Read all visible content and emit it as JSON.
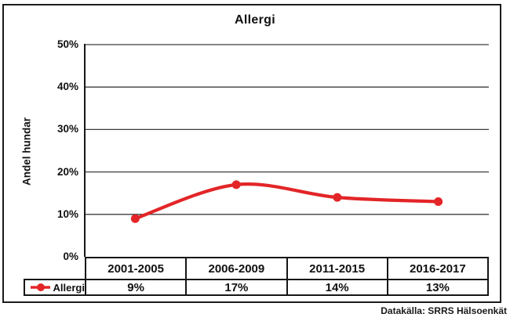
{
  "chart_data": {
    "type": "line",
    "title": "Allergi",
    "ylabel": "Andel hundar",
    "categories": [
      "2001-2005",
      "2006-2009",
      "2011-2015",
      "2016-2017"
    ],
    "series": [
      {
        "name": "Allergi",
        "values": [
          9,
          17,
          14,
          13
        ],
        "value_labels": [
          "9%",
          "17%",
          "14%",
          "13%"
        ],
        "color": "#E32528"
      }
    ],
    "y_tick_labels": [
      "0%",
      "10%",
      "20%",
      "30%",
      "40%",
      "50%"
    ],
    "ylim": [
      0,
      50
    ],
    "grid": true,
    "smooth_line": true,
    "legend_position": "bottom-left-table"
  },
  "source": {
    "label": "Datakälla: SRRS Hälsoenkät"
  }
}
